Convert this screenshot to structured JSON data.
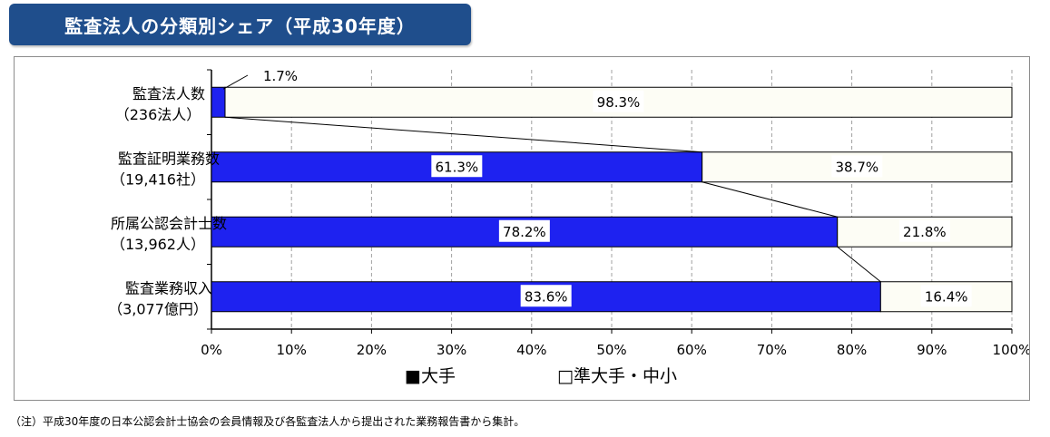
{
  "title": "監査法人の分類別シェア（平成30年度）",
  "note": "（注）平成30年度の日本公認会計士協会の会員情報及び各監査法人から提出された業務報告書から集計。",
  "colors": {
    "large": "#1e22f0",
    "small": "#fdfdf5",
    "title_bg": "#1f4e8c"
  },
  "chart_data": {
    "type": "bar",
    "orientation": "horizontal",
    "stacked": true,
    "percent": true,
    "categories": [
      {
        "label": "監査法人数",
        "sublabel": "（236法人）"
      },
      {
        "label": "監査証明業務数",
        "sublabel": "（19,416社）"
      },
      {
        "label": "所属公認会計士数",
        "sublabel": "（13,962人）"
      },
      {
        "label": "監査業務収入",
        "sublabel": "（3,077億円）"
      }
    ],
    "series": [
      {
        "name": "大手",
        "values": [
          1.7,
          61.3,
          78.2,
          83.6
        ],
        "labels": [
          "1.7%",
          "61.3%",
          "78.2%",
          "83.6%"
        ]
      },
      {
        "name": "準大手・中小",
        "values": [
          98.3,
          38.7,
          21.8,
          16.4
        ],
        "labels": [
          "98.3%",
          "38.7%",
          "21.8%",
          "16.4%"
        ]
      }
    ],
    "xlim": [
      0,
      100
    ],
    "xticks": [
      "0%",
      "10%",
      "20%",
      "30%",
      "40%",
      "50%",
      "60%",
      "70%",
      "80%",
      "90%",
      "100%"
    ],
    "grid": "vertical dashed",
    "legend": "bottom",
    "legend_labels": [
      "■大手",
      "□準大手・中小"
    ]
  }
}
